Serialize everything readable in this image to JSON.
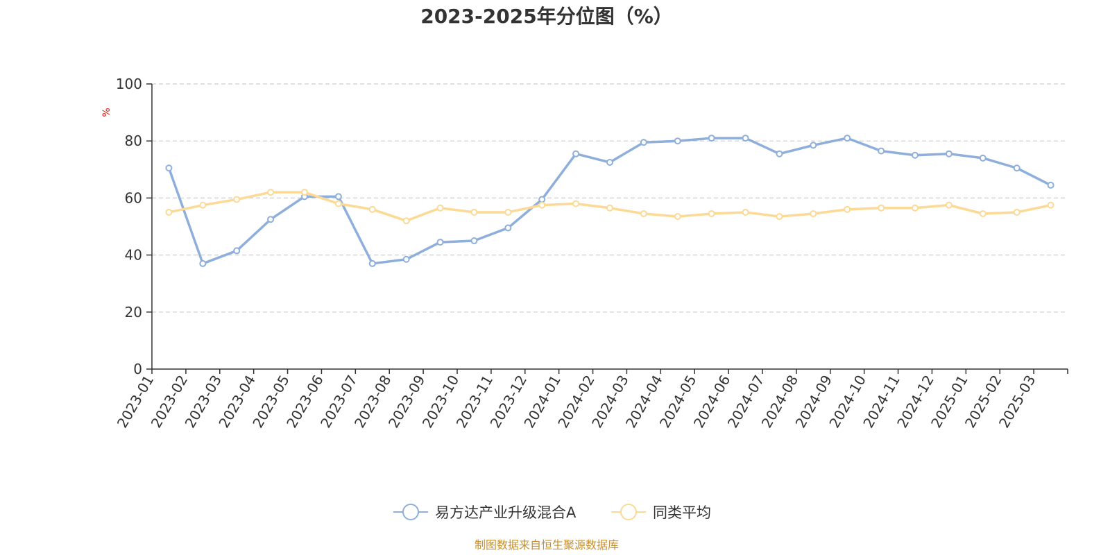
{
  "chart_data": {
    "type": "line",
    "title": "2023-2025年分位图（%）",
    "ylabel": "%",
    "ylim": [
      0,
      100
    ],
    "yticks": [
      0,
      20,
      40,
      60,
      80,
      100
    ],
    "grid": true,
    "legend_position": "bottom",
    "categories": [
      "2023-01",
      "2023-02",
      "2023-03",
      "2023-04",
      "2023-05",
      "2023-06",
      "2023-07",
      "2023-08",
      "2023-09",
      "2023-10",
      "2023-11",
      "2023-12",
      "2024-01",
      "2024-02",
      "2024-03",
      "2024-04",
      "2024-05",
      "2024-06",
      "2024-07",
      "2024-08",
      "2024-09",
      "2024-10",
      "2024-11",
      "2024-12",
      "2025-01",
      "2025-02",
      "2025-03"
    ],
    "series": [
      {
        "name": "易方达产业升级混合A",
        "color": "#8eaedb",
        "values": [
          70.5,
          37.0,
          41.5,
          52.5,
          60.5,
          60.5,
          37.0,
          38.5,
          44.5,
          45.0,
          49.5,
          59.5,
          75.5,
          72.5,
          79.5,
          80.0,
          81.0,
          81.0,
          75.5,
          78.5,
          81.0,
          76.5,
          75.0,
          75.5,
          74.0,
          70.5,
          64.5
        ]
      },
      {
        "name": "同类平均",
        "color": "#fcd995",
        "values": [
          55.0,
          57.5,
          59.5,
          62.0,
          62.0,
          58.0,
          56.0,
          52.0,
          56.5,
          55.0,
          55.0,
          57.5,
          58.0,
          56.5,
          54.5,
          53.5,
          54.5,
          55.0,
          53.5,
          54.5,
          56.0,
          56.5,
          56.5,
          57.5,
          54.5,
          55.0,
          57.5
        ]
      }
    ]
  },
  "colors": {
    "axis": "#333333",
    "grid": "#cccccc",
    "unit": "#e3120b",
    "source": "#c8902d"
  },
  "source_text": "制图数据来自恒生聚源数据库"
}
